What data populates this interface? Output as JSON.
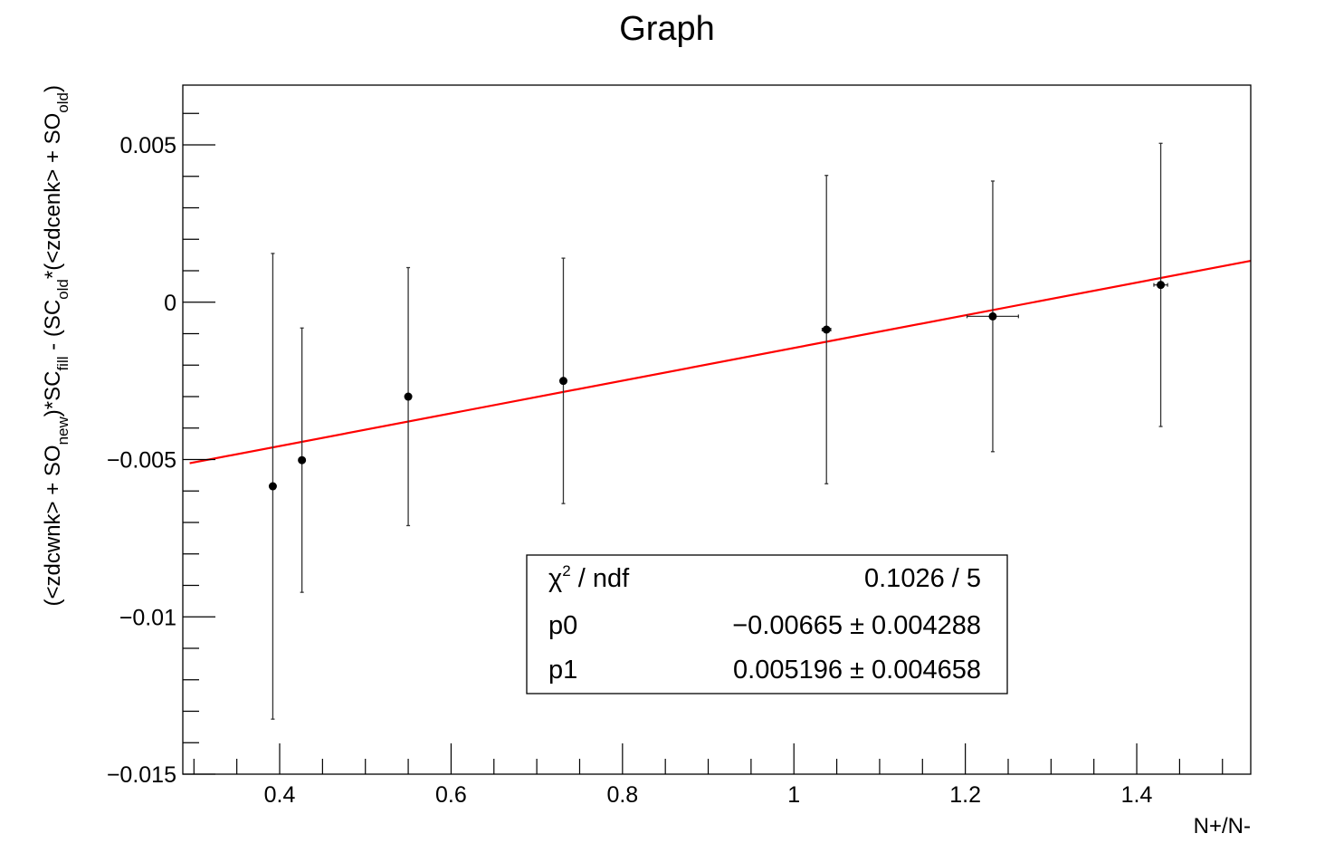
{
  "chart_data": {
    "type": "scatter",
    "title": "Graph",
    "xlabel": "N+/N-",
    "ylabel_parts": [
      "(<zdcwnk> + SO",
      "new",
      ")*SC",
      "fill",
      " - (SC",
      "old",
      "*(<zdcenk> + SO",
      "old",
      ")"
    ],
    "xlim": [
      0.287,
      1.533
    ],
    "ylim": [
      -0.015,
      0.0069
    ],
    "x_ticks": [
      0.4,
      0.6,
      0.8,
      1.0,
      1.2,
      1.4
    ],
    "x_tick_labels": [
      "0.4",
      "0.6",
      "0.8",
      "1",
      "1.2",
      "1.4"
    ],
    "y_ticks": [
      0.005,
      0,
      -0.005,
      -0.01,
      -0.015
    ],
    "y_tick_labels": [
      "0.005",
      "0",
      "−0.005",
      "−0.01",
      "−0.015"
    ],
    "grid": false,
    "series": [
      {
        "points": [
          {
            "x": 0.392,
            "y": -0.00585,
            "xerr": 0.0,
            "yerr": 0.0074
          },
          {
            "x": 0.426,
            "y": -0.00502,
            "xerr": 0.0,
            "yerr": 0.0042
          },
          {
            "x": 0.55,
            "y": -0.003,
            "xerr": 0.0,
            "yerr": 0.0041
          },
          {
            "x": 0.731,
            "y": -0.0025,
            "xerr": 0.0,
            "yerr": 0.0039
          },
          {
            "x": 1.038,
            "y": -0.00087,
            "xerr": 0.005,
            "yerr": 0.0049
          },
          {
            "x": 1.232,
            "y": -0.00045,
            "xerr": 0.03,
            "yerr": 0.0043
          },
          {
            "x": 1.428,
            "y": 0.00055,
            "xerr": 0.008,
            "yerr": 0.0045
          }
        ],
        "color": "#000000"
      },
      {
        "type": "line",
        "fit": {
          "p0": -0.00665,
          "p1": 0.005196
        },
        "x_range": [
          0.295,
          1.533
        ],
        "color": "#ff0000"
      }
    ],
    "stats_box": {
      "rows": [
        {
          "label": "χ",
          "label_sup": "2",
          "label_rest": " / ndf",
          "value": "0.1026 / 5"
        },
        {
          "label": "p0",
          "value": "−0.00665 ± 0.004288"
        },
        {
          "label": "p1",
          "value": "0.005196 ± 0.004658"
        }
      ]
    }
  }
}
